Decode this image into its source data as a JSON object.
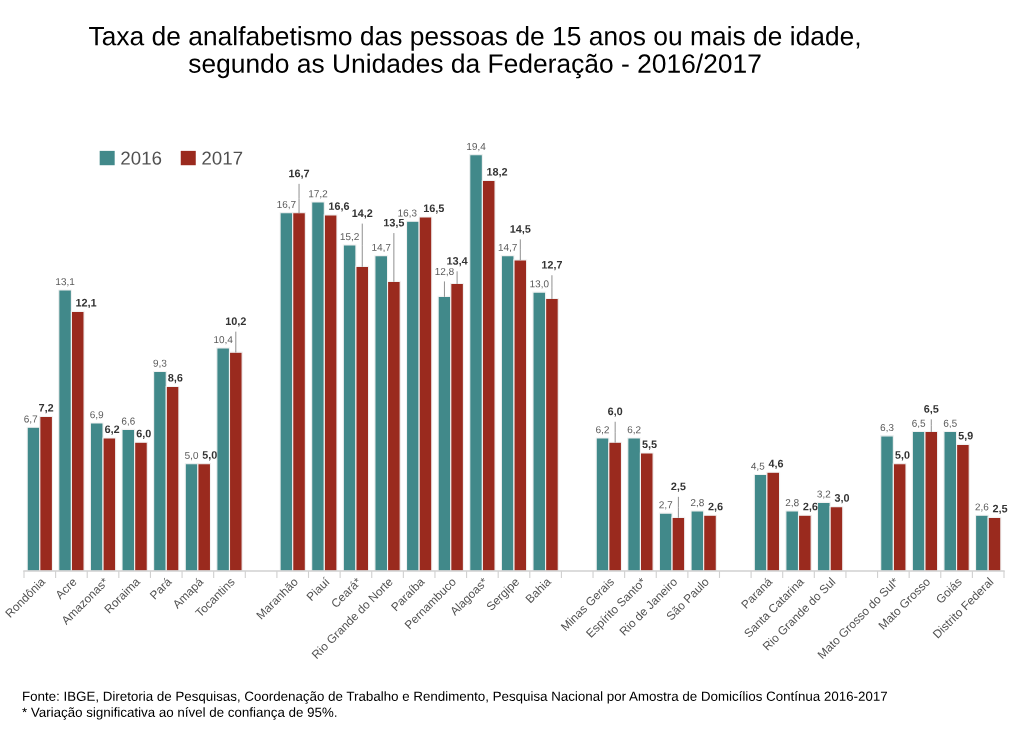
{
  "chart_data": {
    "type": "bar",
    "title": "Taxa de analfabetismo das pessoas de 15 anos ou mais de idade,\nsegundo as Unidades da Federação - 2016/2017",
    "categories": [
      "Rondônia",
      "Acre",
      "Amazonas*",
      "Roraima",
      "Pará",
      "Amapá",
      "Tocantins",
      null,
      "Maranhão",
      "Piauí",
      "Ceará*",
      "Rio Grande do Norte",
      "Paraíba",
      "Pernambuco",
      "Alagoas*",
      "Sergipe",
      "Bahia",
      null,
      "Minas Gerais",
      "Espírito Santo*",
      "Rio de Janeiro",
      "São Paulo",
      null,
      "Paraná",
      "Santa Catarina",
      "Rio Grande do Sul",
      null,
      "Mato Grosso do Sul*",
      "Mato Grosso",
      "Goiás",
      "Distrito Federal"
    ],
    "series": [
      {
        "name": "2016",
        "color": "#41898a",
        "values": [
          6.7,
          13.1,
          6.9,
          6.6,
          9.3,
          5.0,
          10.4,
          null,
          16.7,
          17.2,
          15.2,
          14.7,
          16.3,
          12.8,
          19.4,
          14.7,
          13.0,
          null,
          6.2,
          6.2,
          2.7,
          2.8,
          null,
          4.5,
          2.8,
          3.2,
          null,
          6.3,
          6.5,
          6.5,
          2.6
        ],
        "value_labels": [
          "6,7",
          "13,1",
          "6,9",
          "6,6",
          "9,3",
          "5,0",
          "10,4",
          null,
          "16,7",
          "17,2",
          "15,2",
          "14,7",
          "16,3",
          "12,8",
          "19,4",
          "14,7",
          "13,0",
          null,
          "6,2",
          "6,2",
          "2,7",
          "2,8",
          null,
          "4,5",
          "2,8",
          "3,2",
          null,
          "6,3",
          "6,5",
          "6,5",
          "2,6"
        ]
      },
      {
        "name": "2017",
        "color": "#9a2a1e",
        "values": [
          7.2,
          12.1,
          6.2,
          6.0,
          8.6,
          5.0,
          10.2,
          null,
          16.7,
          16.6,
          14.2,
          13.5,
          16.5,
          13.4,
          18.2,
          14.5,
          12.7,
          null,
          6.0,
          5.5,
          2.5,
          2.6,
          null,
          4.6,
          2.6,
          3.0,
          null,
          5.0,
          6.5,
          5.9,
          2.5
        ],
        "value_labels": [
          "7,2",
          "12,1",
          "6,2",
          "6,0",
          "8,6",
          "5,0",
          "10,2",
          null,
          "16,7",
          "16,6",
          "14,2",
          "13,5",
          "16,5",
          "13,4",
          "18,2",
          "14,5",
          "12,7",
          null,
          "6,0",
          "5,5",
          "2,5",
          "2,6",
          null,
          "4,6",
          "2,6",
          "3,0",
          null,
          "5,0",
          "6,5",
          "5,9",
          "2,5"
        ]
      }
    ],
    "legend": "top left",
    "grid": false,
    "tick_labels": "x",
    "annotations": [
      "Fonte: IBGE, Diretoria de Pesquisas, Coordenação de Trabalho e Rendimento, Pesquisa Nacional por Amostra de Domicílios Contínua 2016-2017",
      "* Variação significativa ao nível de confiança de 95%."
    ]
  }
}
